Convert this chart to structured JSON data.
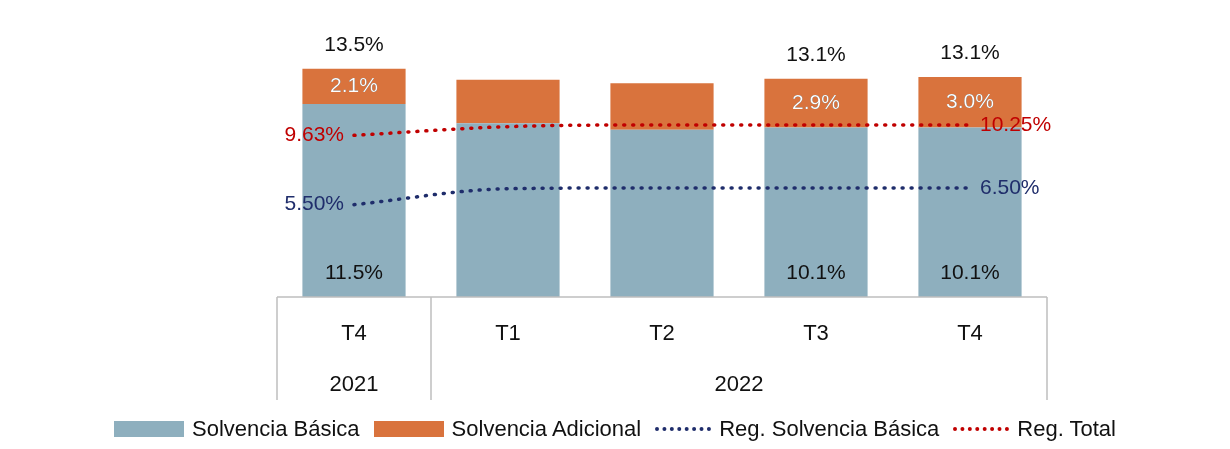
{
  "chart_data": {
    "type": "bar",
    "stacked": true,
    "categories": [
      "T4",
      "T1",
      "T2",
      "T3",
      "T4"
    ],
    "annotations": [
      "2021",
      "2022"
    ],
    "series": [
      {
        "name": "Solvencia Básica",
        "color": "#8eafbe",
        "values": [
          11.5,
          10.35,
          9.96,
          10.1,
          10.1
        ],
        "value_labels": [
          "11.5%",
          null,
          null,
          "10.1%",
          "10.1%"
        ]
      },
      {
        "name": "Solvencia Adicional",
        "color": "#d9733d",
        "values": [
          2.1,
          2.6,
          2.77,
          2.9,
          3.0
        ],
        "value_labels": [
          "2.1%",
          null,
          null,
          "2.9%",
          "3.0%"
        ]
      },
      {
        "name": "Reg. Solvencia Básica",
        "type": "line",
        "line_style": "dotted",
        "marker": "none",
        "color": "#1f2d6b",
        "values": [
          5.5,
          6.45,
          6.5,
          6.5,
          6.5
        ],
        "value_labels": [
          "5.50%",
          null,
          null,
          null,
          "6.50%"
        ]
      },
      {
        "name": "Reg. Total",
        "type": "line",
        "line_style": "dotted",
        "marker": "none",
        "color": "#c00000",
        "values": [
          9.63,
          10.15,
          10.25,
          10.25,
          10.25
        ],
        "value_labels": [
          "9.63%",
          null,
          null,
          null,
          "10.25%"
        ]
      }
    ],
    "totals": [
      "13.5%",
      null,
      null,
      "13.1%",
      "13.1%"
    ],
    "legend": "bottom",
    "tick_labels": "x"
  }
}
